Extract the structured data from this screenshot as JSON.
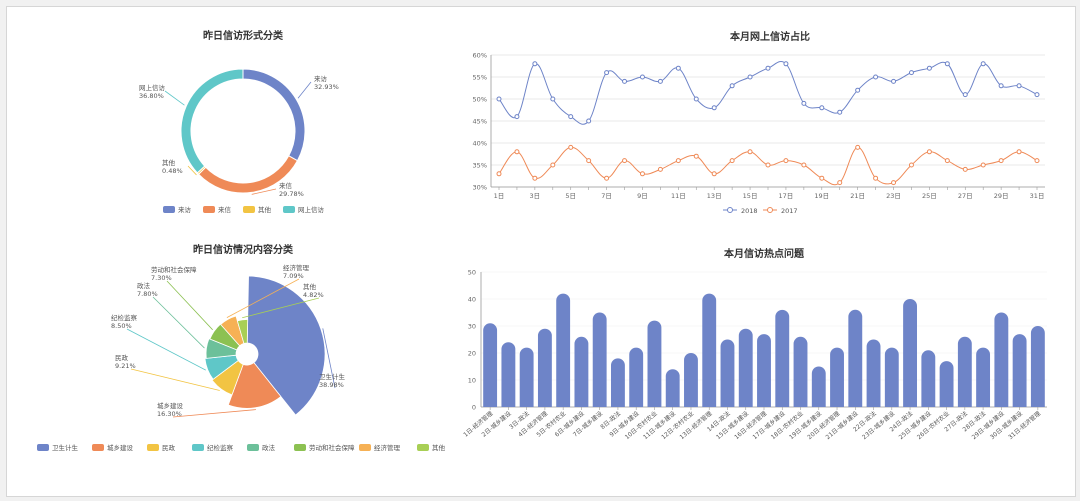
{
  "colors": {
    "blue": "#6e84c8",
    "orange": "#ef8a57",
    "yellow": "#f2c443",
    "teal": "#5fc7c8",
    "green2": "#6cc09a",
    "green": "#8cc152",
    "amber": "#f6b155",
    "lime": "#a8cf55",
    "axis": "#999999",
    "grid": "#e3e3e3"
  },
  "chart_data": [
    {
      "id": "donut",
      "type": "pie",
      "title": "昨日信访形式分类",
      "legend": [
        "来访",
        "来信",
        "其他",
        "网上信访"
      ],
      "slices": [
        {
          "name": "来访",
          "value": 32.93,
          "label_name": "来访",
          "label_value": "32.93%"
        },
        {
          "name": "来信",
          "value": 29.78,
          "label_name": "来信",
          "label_value": "29.78%"
        },
        {
          "name": "其他",
          "value": 0.48,
          "label_name": "其他",
          "label_value": "0.48%"
        },
        {
          "name": "网上信访",
          "value": 36.8,
          "label_name": "网上信访",
          "label_value": "36.80%"
        }
      ]
    },
    {
      "id": "rose",
      "type": "pie",
      "title": "昨日信访情况内容分类",
      "legend": [
        "卫生计生",
        "城乡建设",
        "民政",
        "纪检监察",
        "政法",
        "劳动和社会保障",
        "经济管理",
        "其他"
      ],
      "slices": [
        {
          "name": "卫生计生",
          "value": 38.98,
          "label_name": "卫生计生",
          "label_value": "38.98%"
        },
        {
          "name": "城乡建设",
          "value": 16.3,
          "label_name": "城乡建设",
          "label_value": "16.30%"
        },
        {
          "name": "民政",
          "value": 9.21,
          "label_name": "民政",
          "label_value": "9.21%"
        },
        {
          "name": "纪检监察",
          "value": 8.5,
          "label_name": "纪检监察",
          "label_value": "8.50%"
        },
        {
          "name": "政法",
          "value": 7.8,
          "label_name": "政法",
          "label_value": "7.80%"
        },
        {
          "name": "劳动和社会保障",
          "value": 7.3,
          "label_name": "劳动和社会保障",
          "label_value": "7.30%"
        },
        {
          "name": "经济管理",
          "value": 7.09,
          "label_name": "经济管理",
          "label_value": "7.09%"
        },
        {
          "name": "其他",
          "value": 4.82,
          "label_name": "其他",
          "label_value": "4.82%"
        }
      ]
    },
    {
      "id": "line",
      "type": "line",
      "title": "本月网上信访占比",
      "x": [
        "1日",
        "2日",
        "3日",
        "4日",
        "5日",
        "6日",
        "7日",
        "8日",
        "9日",
        "10日",
        "11日",
        "12日",
        "13日",
        "14日",
        "15日",
        "16日",
        "17日",
        "18日",
        "19日",
        "20日",
        "21日",
        "22日",
        "23日",
        "24日",
        "25日",
        "26日",
        "27日",
        "28日",
        "29日",
        "30日",
        "31日"
      ],
      "x_ticks": [
        "1日",
        "3日",
        "5日",
        "7日",
        "9日",
        "11日",
        "13日",
        "15日",
        "17日",
        "19日",
        "21日",
        "23日",
        "25日",
        "27日",
        "29日",
        "31日"
      ],
      "y_ticks": [
        "30%",
        "35%",
        "40%",
        "45%",
        "50%",
        "55%",
        "60%"
      ],
      "ylim": [
        30,
        60
      ],
      "series": [
        {
          "name": "2018",
          "values": [
            50,
            46,
            58,
            50,
            46,
            45,
            56,
            54,
            55,
            54,
            57,
            50,
            48,
            53,
            55,
            57,
            58,
            49,
            48,
            47,
            52,
            55,
            54,
            56,
            57,
            58,
            51,
            58,
            53,
            53,
            51
          ]
        },
        {
          "name": "2017",
          "values": [
            33,
            38,
            32,
            35,
            39,
            36,
            32,
            36,
            33,
            34,
            36,
            37,
            33,
            36,
            38,
            35,
            36,
            35,
            32,
            31,
            39,
            32,
            31,
            35,
            38,
            36,
            34,
            35,
            36,
            38,
            36
          ]
        }
      ]
    },
    {
      "id": "bar",
      "type": "bar",
      "title": "本月信访热点问题",
      "categories": [
        "1日-经济管理",
        "2日-城乡建设",
        "3日-政法",
        "4日-经济管理",
        "5日-农村农业",
        "6日-城乡建设",
        "7日-城乡建设",
        "8日-政法",
        "9日-城乡建设",
        "10日-农村农业",
        "11日-城乡建设",
        "12日-农村农业",
        "13日-经济管理",
        "14日-政法",
        "15日-城乡建设",
        "16日-经济管理",
        "17日-城乡建设",
        "18日-农村农业",
        "19日-城乡建设",
        "20日-经济管理",
        "21日-城乡建设",
        "22日-政法",
        "23日-城乡建设",
        "24日-政法",
        "25日-城乡建设",
        "26日-农村农业",
        "27日-政法",
        "28日-政法",
        "29日-城乡建设",
        "30日-城乡建设",
        "31日-经济管理"
      ],
      "values": [
        31,
        24,
        22,
        29,
        42,
        26,
        35,
        18,
        22,
        32,
        14,
        20,
        42,
        25,
        29,
        27,
        36,
        26,
        15,
        22,
        36,
        25,
        22,
        40,
        21,
        17,
        26,
        22,
        35,
        27,
        30
      ],
      "y_ticks": [
        "0",
        "10",
        "20",
        "30",
        "40",
        "50"
      ],
      "ylim": [
        0,
        50
      ]
    }
  ]
}
